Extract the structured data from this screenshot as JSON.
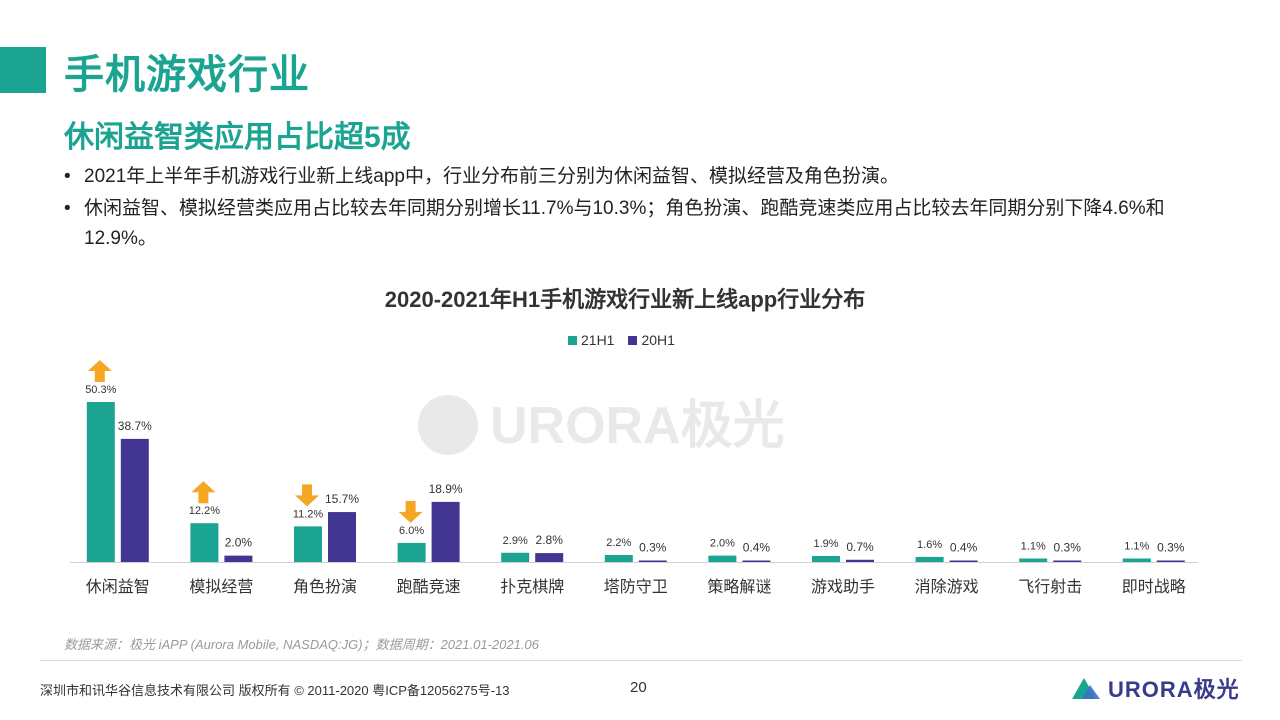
{
  "page": {
    "title": "手机游戏行业",
    "subtitle": "休闲益智类应用占比超5成",
    "bullets": [
      "2021年上半年手机游戏行业新上线app中，行业分布前三分别为休闲益智、模拟经营及角色扮演。",
      "休闲益智、模拟经营类应用占比较去年同期分别增长11.7%与10.3%；角色扮演、跑酷竞速类应用占比较去年同期分别下降4.6%和12.9%。"
    ],
    "bullet_marker": "•"
  },
  "colors": {
    "accent": "#1aa491",
    "series_21h1": "#1aa491",
    "series_20h1": "#433692",
    "arrow": "#f5a623"
  },
  "chart_data": {
    "type": "bar",
    "title": "2020-2021年H1手机游戏行业新上线app行业分布",
    "watermark": "URORA极光",
    "categories": [
      "休闲益智",
      "模拟经营",
      "角色扮演",
      "跑酷竞速",
      "扑克棋牌",
      "塔防守卫",
      "策略解谜",
      "游戏助手",
      "消除游戏",
      "飞行射击",
      "即时战略"
    ],
    "series": [
      {
        "name": "21H1",
        "values": [
          50.3,
          12.2,
          11.2,
          6.0,
          2.9,
          2.2,
          2.0,
          1.9,
          1.6,
          1.1,
          1.1
        ],
        "labels": [
          "50.3%",
          "12.2%",
          "11.2%",
          "6.0%",
          "2.9%",
          "2.2%",
          "2.0%",
          "1.9%",
          "1.6%",
          "1.1%",
          "1.1%"
        ]
      },
      {
        "name": "20H1",
        "values": [
          38.7,
          2.0,
          15.7,
          18.9,
          2.8,
          0.3,
          0.4,
          0.7,
          0.4,
          0.3,
          0.3
        ],
        "labels": [
          "38.7%",
          "2.0%",
          "15.7%",
          "18.9%",
          "2.8%",
          "0.3%",
          "0.4%",
          "0.7%",
          "0.4%",
          "0.3%",
          "0.3%"
        ]
      }
    ],
    "trend_arrows": [
      "up",
      "up",
      "down",
      "down",
      null,
      null,
      null,
      null,
      null,
      null,
      null
    ],
    "ylim": [
      0,
      55
    ],
    "legend": "top-center",
    "grid": false
  },
  "footer": {
    "source": "数据来源：极光 iAPP (Aurora Mobile, NASDAQ:JG)；数据周期：2021.01-2021.06",
    "copyright": "深圳市和讯华谷信息技术有限公司  版权所有 © 2011-2020 粤ICP备12056275号-13",
    "page_number": "20",
    "logo_text": "URORA极光"
  }
}
